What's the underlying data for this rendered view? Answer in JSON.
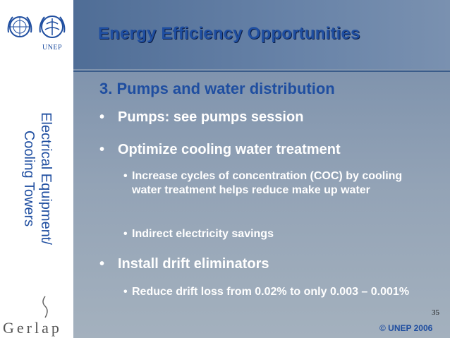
{
  "logos": {
    "unep_label": "UNEP",
    "gerlap_label": "Gerlap"
  },
  "side_title": {
    "line1": "Electrical Equipment/",
    "line2": "Cooling Towers"
  },
  "header": {
    "title": "Energy Efficiency Opportunities"
  },
  "slide": {
    "subtitle": "3. Pumps and water distribution",
    "bullets": [
      {
        "text": "Pumps: see pumps session",
        "sub": []
      },
      {
        "text": "Optimize cooling water treatment",
        "sub": [
          "Increase cycles of concentration (COC) by cooling water treatment helps reduce make up water",
          "Indirect electricity savings"
        ]
      },
      {
        "text": "Install drift eliminators",
        "sub": [
          "Reduce drift loss from 0.02% to only 0.003 – 0.001%"
        ]
      }
    ],
    "bullet_symbol": "•"
  },
  "footer": {
    "page_number": "35",
    "copyright": "© UNEP 2006"
  },
  "colors": {
    "title_blue": "#1f4ea0",
    "panel_blue": "#7f93ad",
    "text_white": "#ffffff"
  }
}
